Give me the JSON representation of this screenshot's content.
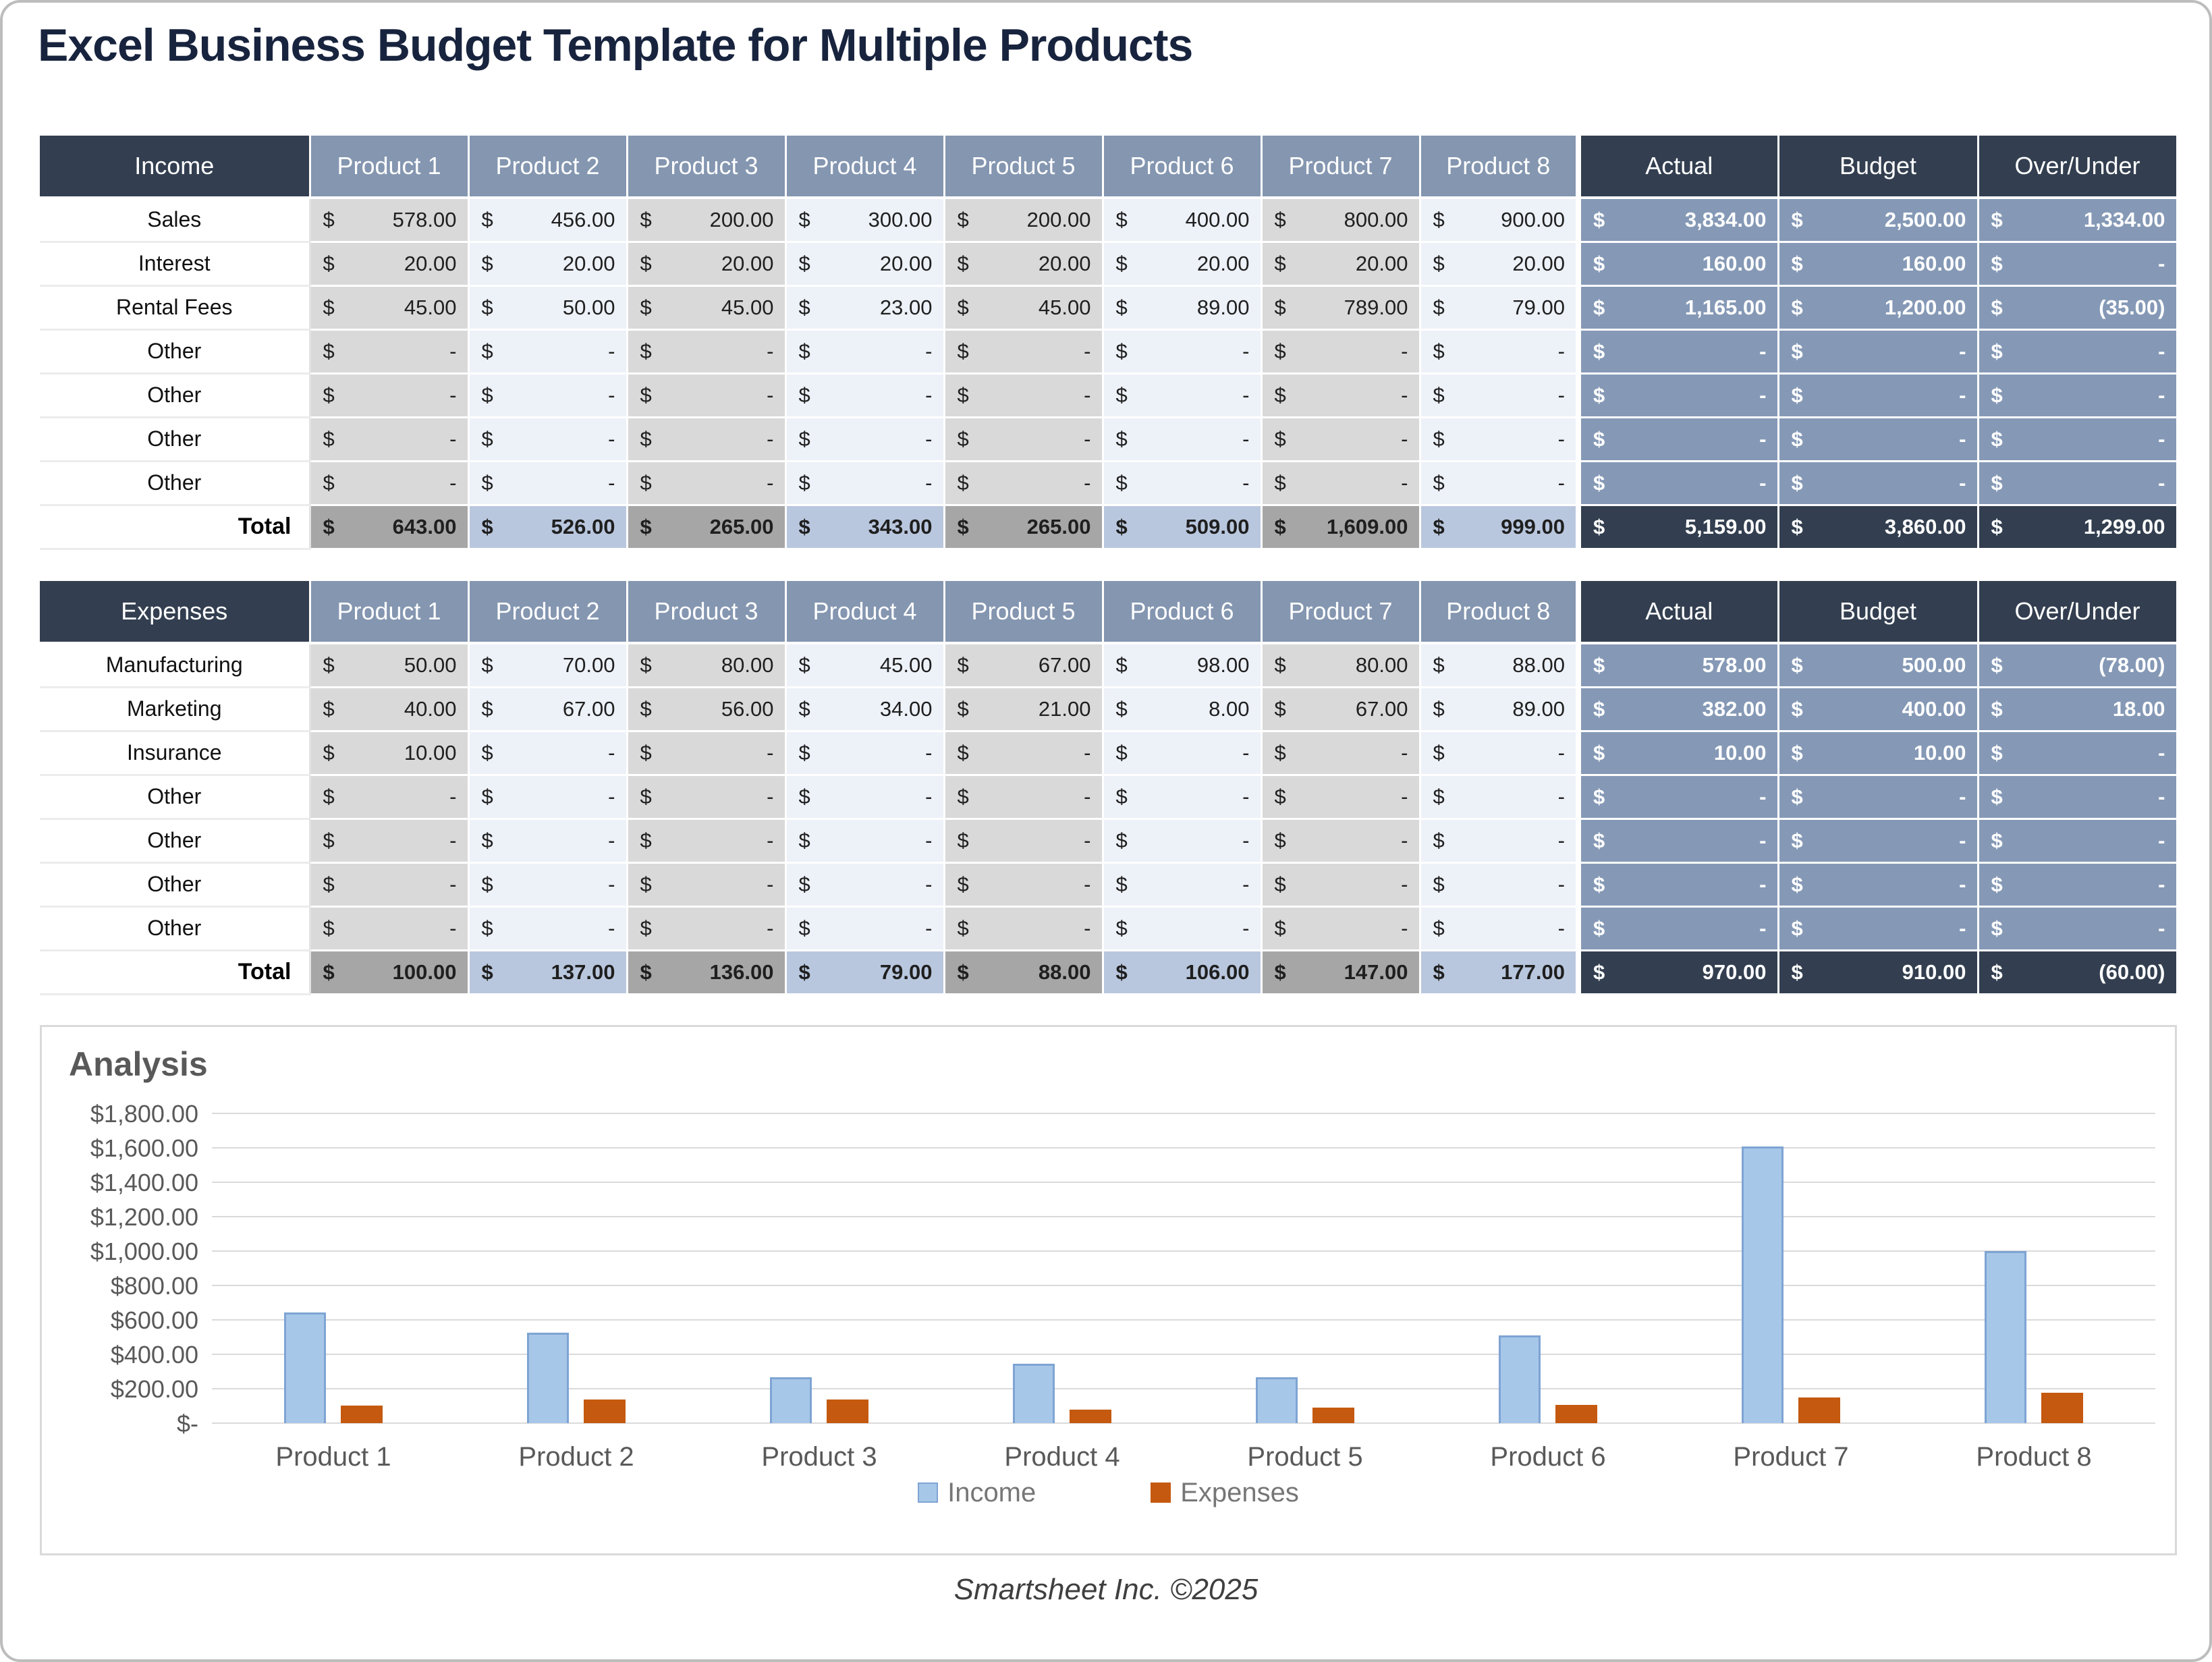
{
  "page": {
    "title": "Excel Business Budget Template for Multiple Products",
    "footer": "Smartsheet Inc. ©2025"
  },
  "currency": "$",
  "colors": {
    "title_navy": "#18243E",
    "header_dark": "#333F50",
    "header_blue_gray": "#8496B0",
    "summary_body": "#8599B6",
    "stripe_gray": "#D9D9D9",
    "stripe_light": "#EDF1F8",
    "total_gray": "#A6A6A6",
    "total_blue": "#B9C7DE",
    "income_bar": "#A7C7E9",
    "income_bar_border": "#7EA4D3",
    "expenses_bar": "#C4590F"
  },
  "income_table": {
    "header": [
      "Income",
      "Product 1",
      "Product 2",
      "Product 3",
      "Product 4",
      "Product 5",
      "Product 6",
      "Product 7",
      "Product 8",
      "Actual",
      "Budget",
      "Over/Under"
    ],
    "rows": [
      {
        "label": "Sales",
        "values": [
          "578.00",
          "456.00",
          "200.00",
          "300.00",
          "200.00",
          "400.00",
          "800.00",
          "900.00"
        ],
        "actual": "3,834.00",
        "budget": "2,500.00",
        "over_under": "1,334.00"
      },
      {
        "label": "Interest",
        "values": [
          "20.00",
          "20.00",
          "20.00",
          "20.00",
          "20.00",
          "20.00",
          "20.00",
          "20.00"
        ],
        "actual": "160.00",
        "budget": "160.00",
        "over_under": "-"
      },
      {
        "label": "Rental Fees",
        "values": [
          "45.00",
          "50.00",
          "45.00",
          "23.00",
          "45.00",
          "89.00",
          "789.00",
          "79.00"
        ],
        "actual": "1,165.00",
        "budget": "1,200.00",
        "over_under": "(35.00)"
      },
      {
        "label": "Other",
        "values": [
          "-",
          "-",
          "-",
          "-",
          "-",
          "-",
          "-",
          "-"
        ],
        "actual": "-",
        "budget": "-",
        "over_under": "-"
      },
      {
        "label": "Other",
        "values": [
          "-",
          "-",
          "-",
          "-",
          "-",
          "-",
          "-",
          "-"
        ],
        "actual": "-",
        "budget": "-",
        "over_under": "-"
      },
      {
        "label": "Other",
        "values": [
          "-",
          "-",
          "-",
          "-",
          "-",
          "-",
          "-",
          "-"
        ],
        "actual": "-",
        "budget": "-",
        "over_under": "-"
      },
      {
        "label": "Other",
        "values": [
          "-",
          "-",
          "-",
          "-",
          "-",
          "-",
          "-",
          "-"
        ],
        "actual": "-",
        "budget": "-",
        "over_under": "-"
      }
    ],
    "total": {
      "label": "Total",
      "values": [
        "643.00",
        "526.00",
        "265.00",
        "343.00",
        "265.00",
        "509.00",
        "1,609.00",
        "999.00"
      ],
      "actual": "5,159.00",
      "budget": "3,860.00",
      "over_under": "1,299.00"
    }
  },
  "expenses_table": {
    "header": [
      "Expenses",
      "Product 1",
      "Product 2",
      "Product 3",
      "Product 4",
      "Product 5",
      "Product 6",
      "Product 7",
      "Product 8",
      "Actual",
      "Budget",
      "Over/Under"
    ],
    "rows": [
      {
        "label": "Manufacturing",
        "values": [
          "50.00",
          "70.00",
          "80.00",
          "45.00",
          "67.00",
          "98.00",
          "80.00",
          "88.00"
        ],
        "actual": "578.00",
        "budget": "500.00",
        "over_under": "(78.00)"
      },
      {
        "label": "Marketing",
        "values": [
          "40.00",
          "67.00",
          "56.00",
          "34.00",
          "21.00",
          "8.00",
          "67.00",
          "89.00"
        ],
        "actual": "382.00",
        "budget": "400.00",
        "over_under": "18.00"
      },
      {
        "label": "Insurance",
        "values": [
          "10.00",
          "-",
          "-",
          "-",
          "-",
          "-",
          "-",
          "-"
        ],
        "actual": "10.00",
        "budget": "10.00",
        "over_under": "-"
      },
      {
        "label": "Other",
        "values": [
          "-",
          "-",
          "-",
          "-",
          "-",
          "-",
          "-",
          "-"
        ],
        "actual": "-",
        "budget": "-",
        "over_under": "-"
      },
      {
        "label": "Other",
        "values": [
          "-",
          "-",
          "-",
          "-",
          "-",
          "-",
          "-",
          "-"
        ],
        "actual": "-",
        "budget": "-",
        "over_under": "-"
      },
      {
        "label": "Other",
        "values": [
          "-",
          "-",
          "-",
          "-",
          "-",
          "-",
          "-",
          "-"
        ],
        "actual": "-",
        "budget": "-",
        "over_under": "-"
      },
      {
        "label": "Other",
        "values": [
          "-",
          "-",
          "-",
          "-",
          "-",
          "-",
          "-",
          "-"
        ],
        "actual": "-",
        "budget": "-",
        "over_under": "-"
      }
    ],
    "total": {
      "label": "Total",
      "values": [
        "100.00",
        "137.00",
        "136.00",
        "79.00",
        "88.00",
        "106.00",
        "147.00",
        "177.00"
      ],
      "actual": "970.00",
      "budget": "910.00",
      "over_under": "(60.00)"
    }
  },
  "chart_data": {
    "type": "bar",
    "title": "Analysis",
    "categories": [
      "Product 1",
      "Product 2",
      "Product 3",
      "Product 4",
      "Product 5",
      "Product 6",
      "Product 7",
      "Product 8"
    ],
    "series": [
      {
        "name": "Income",
        "color": "#A7C7E9",
        "border": "#7EA4D3",
        "values": [
          643,
          526,
          265,
          343,
          265,
          509,
          1609,
          999
        ]
      },
      {
        "name": "Expenses",
        "color": "#C4590F",
        "values": [
          100,
          137,
          136,
          79,
          88,
          106,
          147,
          177
        ]
      }
    ],
    "xlabel": "",
    "ylabel": "",
    "ylim": [
      0,
      1800
    ],
    "yticks": [
      "$1,800.00",
      "$1,600.00",
      "$1,400.00",
      "$1,200.00",
      "$1,000.00",
      "$800.00",
      "$600.00",
      "$400.00",
      "$200.00",
      "$-"
    ],
    "grid": true,
    "legend_position": "bottom"
  }
}
